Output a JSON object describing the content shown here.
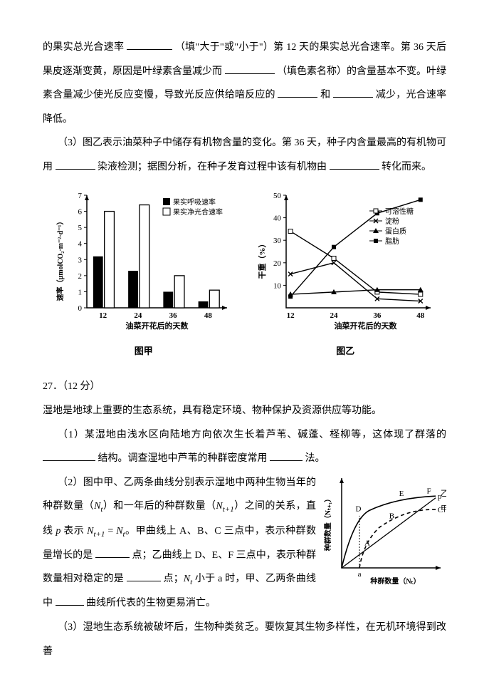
{
  "p1_a": "的果实总光合速率",
  "p1_b": "（填\"大于\"或\"小于\"）第 12 天的果实总光合速率。第 36 天后果皮逐渐变黄，原因是叶绿素含量减少而",
  "p1_c": "（填色素名称）的含量基本不变。叶绿素含量减少使光反应变慢，导致光反应供给暗反应的",
  "p1_d": "和",
  "p1_e": "减少，光合速率降低。",
  "p2_a": "（3）图乙表示油菜种子中储存有机物含量的变化。第 36 天，种子内含量最高的有机物可用",
  "p2_b": "染液检测；据图分析，在种子发育过程中该有机物由",
  "p2_c": "转化而来。",
  "chart1": {
    "ylabel": "速率（μmolCO₂·m⁻²·d⁻¹）",
    "legend": [
      "果实呼吸速率",
      "果实净光合速率"
    ],
    "categories": [
      "12",
      "24",
      "36",
      "48"
    ],
    "resp": [
      3.2,
      2.3,
      1.0,
      0.4
    ],
    "net": [
      6.0,
      6.4,
      2.0,
      1.1
    ],
    "xlabel": "油菜开花后的天数",
    "caption": "图甲",
    "ymax": 7,
    "bar_fill": "#000000",
    "bar_open": "#ffffff",
    "axis_color": "#000000"
  },
  "chart2": {
    "ylabel": "干重（%）",
    "xlabel": "油菜开花后的天数",
    "legend": [
      "可溶性糖",
      "淀粉",
      "蛋白质",
      "脂肪"
    ],
    "caption": "图乙",
    "x": [
      12,
      24,
      36,
      48
    ],
    "soluble": [
      34,
      22,
      7,
      6
    ],
    "starch": [
      15,
      20,
      4,
      3
    ],
    "protein": [
      6,
      7,
      8,
      8
    ],
    "fat": [
      5,
      27,
      42,
      48
    ],
    "ymax": 50,
    "marker_stroke": "#000000"
  },
  "q27_num": "27．（12 分）",
  "q27_intro": "湿地是地球上重要的生态系统，具有稳定环境、物种保护及资源供应等功能。",
  "q27_1a": "（1）某湿地由浅水区向陆地方向依次生长着芦苇、碱蓬、柽柳等，这体现了群落的",
  "q27_1b": "结构。调查湿地中芦苇的种群密度常用",
  "q27_1c": "法。",
  "q27_2a": "（2）图中甲、乙两条曲线分别表示湿地中两种生物当年的种群数量（",
  "nt": "N",
  "tsub": "t",
  "q27_2a2": "）和一年后的种群数量（",
  "t1sub": "t+1",
  "q27_2a3": "）之间的关系，直线 ",
  "pvar": "p",
  "q27_2a4": " 表示 ",
  "eq": " = ",
  "q27_2a5": "。甲曲线上 A、B、C 三点中，表示种群数量增长的是",
  "q27_2b": "点；乙曲线上 D、E、F 三点中，表示种群数量相对稳定的是",
  "q27_2c": "点；",
  "q27_2d": " 小于 a 时，甲、乙两条曲线中",
  "q27_2e": "曲线所代表的生物更易消亡。",
  "chart3": {
    "xlabel": "种群数量（Nₜ）",
    "ylabel": "种群数量（Nₜ₊₁）",
    "labels": [
      "A",
      "B",
      "C",
      "D",
      "E",
      "F",
      "p",
      "a",
      "甲",
      "乙"
    ],
    "axis_color": "#000000"
  },
  "q27_3": "（3）湿地生态系统被破坏后，生物种类贫乏。要恢复其生物多样性，在无机环境得到改善"
}
